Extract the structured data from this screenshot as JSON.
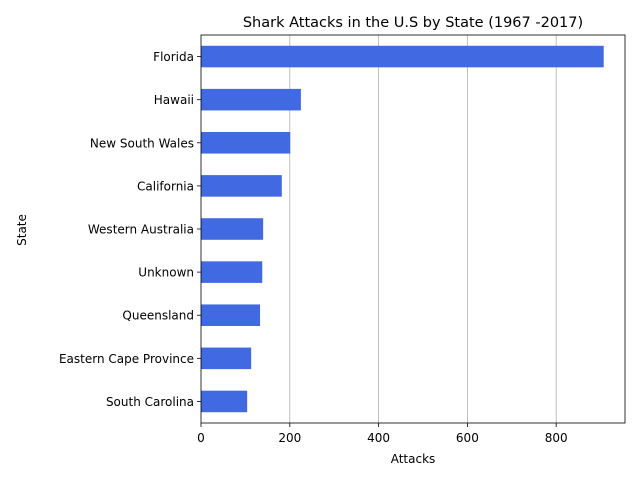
{
  "chart_data": {
    "type": "bar",
    "orientation": "horizontal",
    "title": "Shark Attacks in the U.S by State (1967 -2017)",
    "xlabel": "Attacks",
    "ylabel": "State",
    "categories": [
      "Florida",
      "Hawaii",
      "New South Wales",
      "California",
      "Western Australia",
      "Unknown",
      "Queensland",
      "Eastern Cape Province",
      "South Carolina"
    ],
    "values": [
      907,
      225,
      201,
      182,
      140,
      138,
      133,
      113,
      104
    ],
    "xlim": [
      0,
      955
    ],
    "xticks": [
      "0",
      "200",
      "400",
      "600",
      "800"
    ],
    "grid": "x",
    "colors": {
      "bar": "#4169e1",
      "grid": "#b0b0b0",
      "axis": "#000000"
    }
  }
}
